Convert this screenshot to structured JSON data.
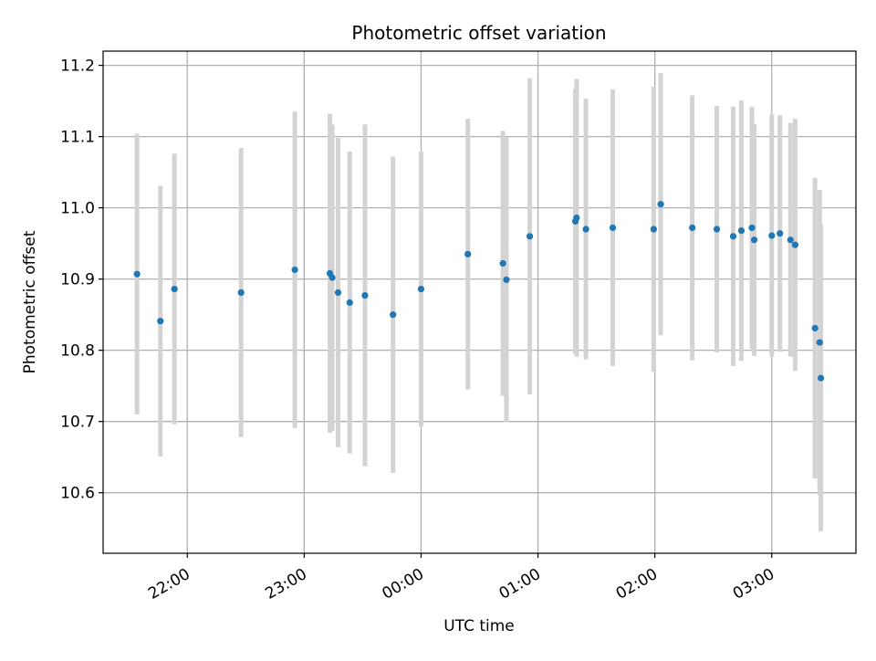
{
  "chart_data": {
    "type": "scatter",
    "title": "Photometric offset variation",
    "xlabel": "UTC time",
    "ylabel": "Photometric offset",
    "x_axis": "time (hours relative to 00:00 UTC)",
    "xlim": [
      -2.72,
      3.72
    ],
    "ylim": [
      10.515,
      11.22
    ],
    "x_ticks": [
      {
        "value": -2,
        "label": "22:00"
      },
      {
        "value": -1,
        "label": "23:00"
      },
      {
        "value": 0,
        "label": "00:00"
      },
      {
        "value": 1,
        "label": "01:00"
      },
      {
        "value": 2,
        "label": "02:00"
      },
      {
        "value": 3,
        "label": "03:00"
      }
    ],
    "y_ticks": [
      10.6,
      10.7,
      10.8,
      10.9,
      11.0,
      11.1,
      11.2
    ],
    "y_tick_labels": [
      "10.6",
      "10.7",
      "10.8",
      "10.9",
      "11.0",
      "11.1",
      "11.2"
    ],
    "grid": true,
    "marker_color": "#1f77b4",
    "errorbar_color": "#d3d3d3",
    "points": [
      {
        "x": -2.43,
        "y": 10.907,
        "err": 0.197
      },
      {
        "x": -2.23,
        "y": 10.841,
        "err": 0.19
      },
      {
        "x": -2.11,
        "y": 10.886,
        "err": 0.19
      },
      {
        "x": -1.54,
        "y": 10.881,
        "err": 0.203
      },
      {
        "x": -1.08,
        "y": 10.913,
        "err": 0.222
      },
      {
        "x": -0.78,
        "y": 10.908,
        "err": 0.224
      },
      {
        "x": -0.76,
        "y": 10.902,
        "err": 0.215
      },
      {
        "x": -0.71,
        "y": 10.881,
        "err": 0.217
      },
      {
        "x": -0.61,
        "y": 10.867,
        "err": 0.212
      },
      {
        "x": -0.48,
        "y": 10.877,
        "err": 0.24
      },
      {
        "x": -0.24,
        "y": 10.85,
        "err": 0.222
      },
      {
        "x": 0.0,
        "y": 10.886,
        "err": 0.193
      },
      {
        "x": 0.4,
        "y": 10.935,
        "err": 0.19
      },
      {
        "x": 0.7,
        "y": 10.922,
        "err": 0.186
      },
      {
        "x": 0.73,
        "y": 10.899,
        "err": 0.2
      },
      {
        "x": 0.93,
        "y": 10.96,
        "err": 0.222
      },
      {
        "x": 1.32,
        "y": 10.981,
        "err": 0.186
      },
      {
        "x": 1.33,
        "y": 10.986,
        "err": 0.195
      },
      {
        "x": 1.41,
        "y": 10.97,
        "err": 0.183
      },
      {
        "x": 1.64,
        "y": 10.972,
        "err": 0.194
      },
      {
        "x": 1.99,
        "y": 10.97,
        "err": 0.2
      },
      {
        "x": 2.05,
        "y": 11.005,
        "err": 0.184
      },
      {
        "x": 2.32,
        "y": 10.972,
        "err": 0.186
      },
      {
        "x": 2.53,
        "y": 10.97,
        "err": 0.173
      },
      {
        "x": 2.67,
        "y": 10.96,
        "err": 0.182
      },
      {
        "x": 2.74,
        "y": 10.968,
        "err": 0.183
      },
      {
        "x": 2.83,
        "y": 10.972,
        "err": 0.17
      },
      {
        "x": 2.85,
        "y": 10.955,
        "err": 0.163
      },
      {
        "x": 3.0,
        "y": 10.961,
        "err": 0.17
      },
      {
        "x": 3.07,
        "y": 10.964,
        "err": 0.166
      },
      {
        "x": 3.16,
        "y": 10.955,
        "err": 0.164
      },
      {
        "x": 3.2,
        "y": 10.948,
        "err": 0.177
      },
      {
        "x": 3.37,
        "y": 10.831,
        "err": 0.211
      },
      {
        "x": 3.41,
        "y": 10.811,
        "err": 0.214
      },
      {
        "x": 3.42,
        "y": 10.761,
        "err": 0.215
      }
    ]
  }
}
